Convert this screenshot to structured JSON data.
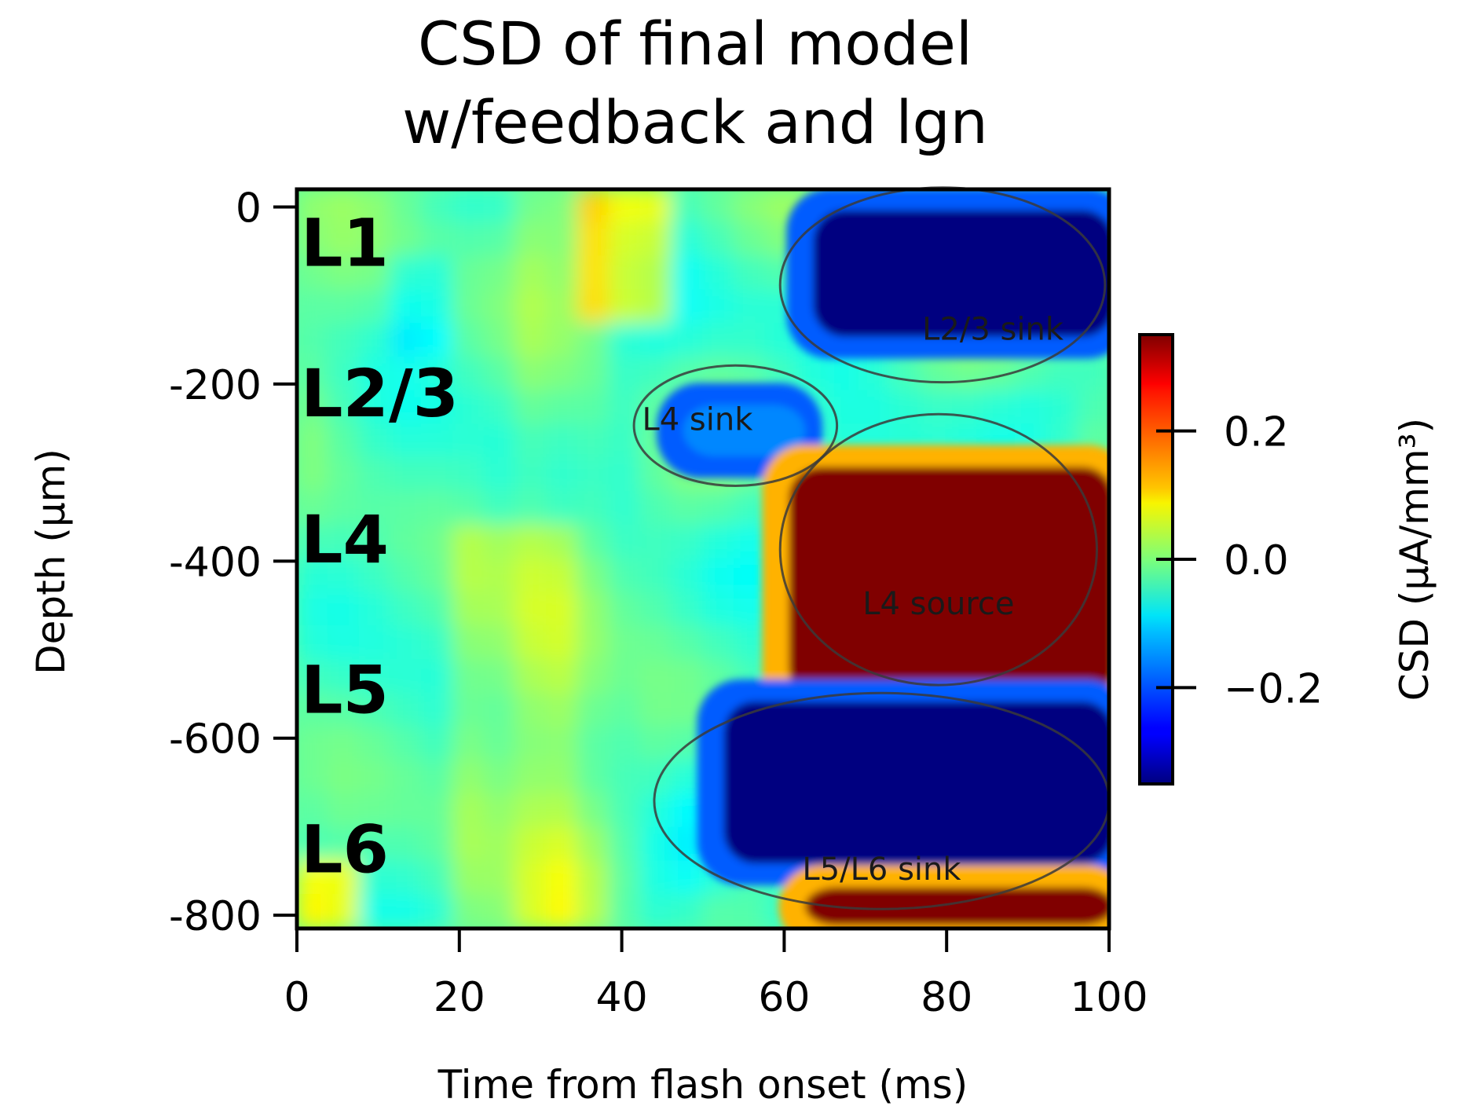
{
  "chart_data": {
    "type": "heatmap",
    "title_lines": [
      "CSD of final model",
      "w/feedback and lgn"
    ],
    "xlabel": "Time from flash onset (ms)",
    "ylabel": "Depth (μm)",
    "xlim": [
      0,
      100
    ],
    "ylim": [
      -815,
      20
    ],
    "x_ticks": [
      0,
      20,
      40,
      60,
      80,
      100
    ],
    "x_tick_labels": [
      "0",
      "20",
      "40",
      "60",
      "80",
      "100"
    ],
    "y_ticks": [
      0,
      -200,
      -400,
      -600,
      -800
    ],
    "y_tick_labels": [
      "0",
      "-200",
      "-400",
      "-600",
      "-800"
    ],
    "colorbar": {
      "label": "CSD (μA/mm³)",
      "colormap": "jet",
      "vmin": -0.35,
      "vmax": 0.35,
      "ticks": [
        0.2,
        0.0,
        -0.2
      ],
      "tick_labels": [
        "0.2",
        "0.0",
        "−0.2"
      ]
    },
    "layers": [
      {
        "label": "L1",
        "depth": -40
      },
      {
        "label": "L2/3",
        "depth": -210
      },
      {
        "label": "L4",
        "depth": -375
      },
      {
        "label": "L5",
        "depth": -545
      },
      {
        "label": "L6",
        "depth": -725
      }
    ],
    "regions": [
      {
        "label": "L2/3 sink",
        "t0": 63,
        "t1": 100,
        "d0": 0,
        "d1": -150,
        "value": -0.5
      },
      {
        "label": "L4 sink",
        "t0": 47,
        "t1": 62,
        "d0": -220,
        "d1": -285,
        "value": -0.17
      },
      {
        "label": "L4 source",
        "t0": 60,
        "t1": 100,
        "d0": -290,
        "d1": -560,
        "value": 0.45
      },
      {
        "label": "L5/L6 sink",
        "t0": 52,
        "t1": 100,
        "d0": -555,
        "d1": -745,
        "value": -0.5
      },
      {
        "label": "",
        "t0": 62,
        "t1": 100,
        "d0": -765,
        "d1": -815,
        "value": 0.5
      }
    ],
    "ellipses": [
      {
        "label": "L2/3 sink",
        "cx": 79.5,
        "cy": -88,
        "rx": 20,
        "ry": 110,
        "label_x": 77,
        "label_y": -150
      },
      {
        "label": "L4 sink",
        "cx": 54,
        "cy": -247,
        "rx": 12.5,
        "ry": 68,
        "label_x": 42.5,
        "label_y": -252
      },
      {
        "label": "L4 source",
        "cx": 79,
        "cy": -387,
        "rx": 19.5,
        "ry": 153,
        "label_x": 79,
        "label_y": -460
      },
      {
        "label": "L5/L6 sink",
        "cx": 72,
        "cy": -671,
        "rx": 28,
        "ry": 122,
        "label_x": 72,
        "label_y": -760
      }
    ]
  }
}
